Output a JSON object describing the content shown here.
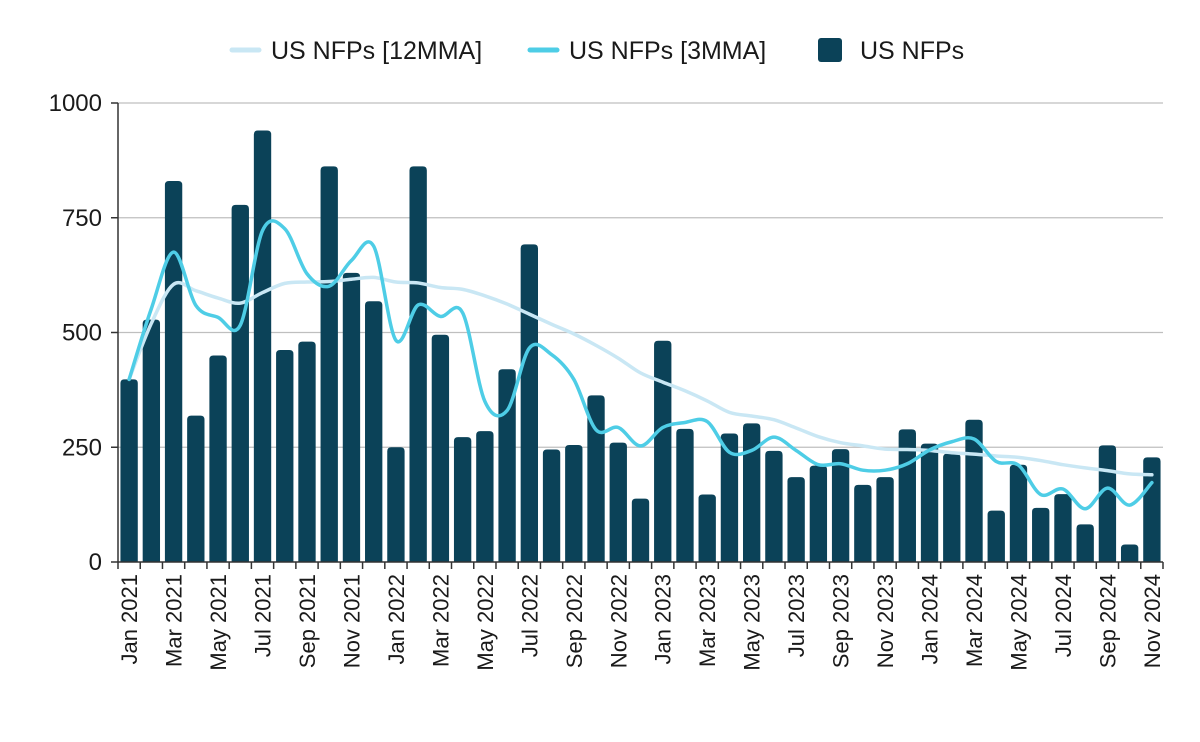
{
  "chart_data": {
    "type": "bar",
    "categories": [
      "Jan 2021",
      "Feb 2021",
      "Mar 2021",
      "Apr 2021",
      "May 2021",
      "Jun 2021",
      "Jul 2021",
      "Aug 2021",
      "Sep 2021",
      "Oct 2021",
      "Nov 2021",
      "Dec 2021",
      "Jan 2022",
      "Feb 2022",
      "Mar 2022",
      "Apr 2022",
      "May 2022",
      "Jun 2022",
      "Jul 2022",
      "Aug 2022",
      "Sep 2022",
      "Oct 2022",
      "Nov 2022",
      "Dec 2022",
      "Jan 2023",
      "Feb 2023",
      "Mar 2023",
      "Apr 2023",
      "May 2023",
      "Jun 2023",
      "Jul 2023",
      "Aug 2023",
      "Sep 2023",
      "Oct 2023",
      "Nov 2023",
      "Dec 2023",
      "Jan 2024",
      "Feb 2024",
      "Mar 2024",
      "Apr 2024",
      "May 2024",
      "Jun 2024",
      "Jul 2024",
      "Aug 2024",
      "Sep 2024",
      "Oct 2024",
      "Nov 2024"
    ],
    "tick_labels": [
      "Jan 2021",
      "Mar 2021",
      "May 2021",
      "Jul 2021",
      "Sep 2021",
      "Nov 2021",
      "Jan 2022",
      "Mar 2022",
      "May 2022",
      "Jul 2022",
      "Sep 2022",
      "Nov 2022",
      "Jan 2023",
      "Mar 2023",
      "May 2023",
      "Jul 2023",
      "Sep 2023",
      "Nov 2023",
      "Jan 2024",
      "Mar 2024",
      "May 2024",
      "Jul 2024",
      "Sep 2024",
      "Nov 2024"
    ],
    "series": [
      {
        "name": "US NFPs",
        "type": "bar",
        "color": "#0b4258",
        "values": [
          398,
          528,
          830,
          319,
          450,
          778,
          940,
          462,
          480,
          862,
          630,
          568,
          250,
          862,
          495,
          272,
          285,
          420,
          692,
          245,
          255,
          363,
          260,
          138,
          482,
          290,
          147,
          280,
          302,
          242,
          185,
          210,
          246,
          168,
          185,
          289,
          258,
          236,
          310,
          112,
          212,
          118,
          148,
          82,
          254,
          38,
          228
        ]
      },
      {
        "name": "US NFPs [3MMA]",
        "type": "line",
        "color": "#4ecde6",
        "values": [
          398,
          552,
          675,
          559,
          533,
          516,
          722,
          726,
          628,
          601,
          657,
          688,
          483,
          560,
          535,
          543,
          350,
          330,
          466,
          452,
          398,
          288,
          293,
          253,
          293,
          304,
          306,
          239,
          243,
          272,
          243,
          212,
          214,
          200,
          200,
          214,
          244,
          262,
          268,
          219,
          211,
          147,
          159,
          116,
          161,
          124,
          173
        ]
      },
      {
        "name": "US NFPs [12MMA]",
        "type": "line",
        "color": "#c9e7f4",
        "values": [
          398,
          520,
          605,
          591,
          575,
          564,
          587,
          607,
          610,
          611,
          616,
          620,
          610,
          608,
          598,
          594,
          580,
          562,
          540,
          518,
          497,
          472,
          444,
          412,
          392,
          373,
          351,
          326,
          318,
          310,
          292,
          273,
          260,
          253,
          246,
          245,
          243,
          238,
          235,
          231,
          228,
          221,
          212,
          205,
          199,
          192,
          190
        ]
      }
    ],
    "ylim": [
      0,
      1000
    ],
    "yticks": [
      0,
      250,
      500,
      750,
      1000
    ],
    "legend_position": "top",
    "grid": "horizontal",
    "xlabel": "",
    "ylabel": "",
    "title": ""
  }
}
